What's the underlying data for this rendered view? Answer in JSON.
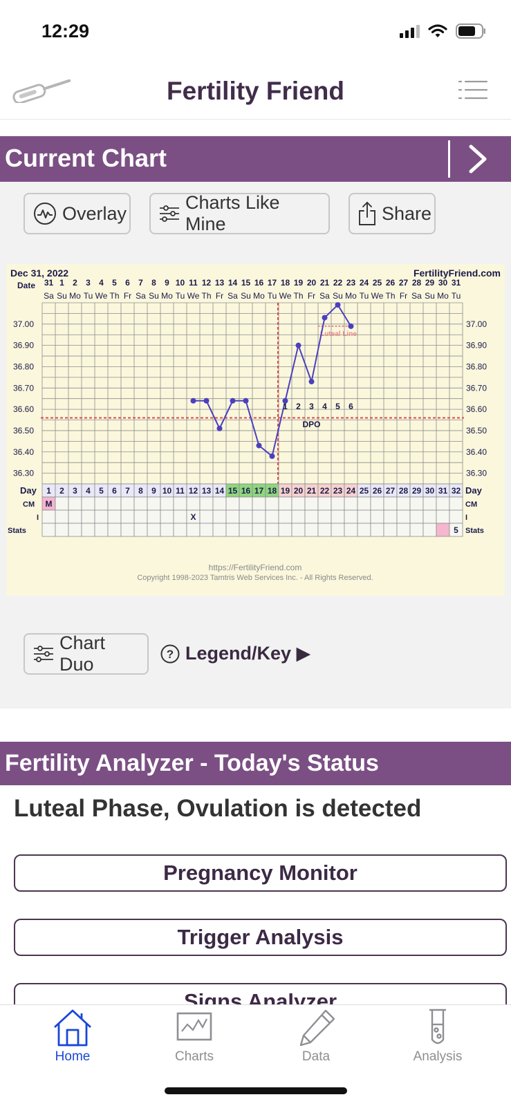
{
  "status_bar": {
    "time": "12:29"
  },
  "header": {
    "title": "Fertility Friend"
  },
  "current_chart": {
    "title": "Current Chart",
    "buttons": {
      "overlay": "Overlay",
      "charts_like_mine": "Charts Like Mine",
      "share": "Share"
    }
  },
  "chart_data": {
    "type": "line",
    "title": "Dec 31, 2022",
    "brand": "FertilityFriend.com",
    "date_row_label": "Date",
    "dates": [
      "31",
      "1",
      "2",
      "3",
      "4",
      "5",
      "6",
      "7",
      "8",
      "9",
      "10",
      "11",
      "12",
      "13",
      "14",
      "15",
      "16",
      "17",
      "18",
      "19",
      "20",
      "21",
      "22",
      "23",
      "24",
      "25",
      "26",
      "27",
      "28",
      "29",
      "30",
      "31"
    ],
    "weekdays": [
      "Sa",
      "Su",
      "Mo",
      "Tu",
      "We",
      "Th",
      "Fr",
      "Sa",
      "Su",
      "Mo",
      "Tu",
      "We",
      "Th",
      "Fr",
      "Sa",
      "Su",
      "Mo",
      "Tu",
      "We",
      "Th",
      "Fr",
      "Sa",
      "Su",
      "Mo",
      "Tu",
      "We",
      "Th",
      "Fr",
      "Sa",
      "Su",
      "Mo",
      "Tu"
    ],
    "y_ticks": [
      "37.00",
      "36.90",
      "36.80",
      "36.70",
      "36.60",
      "36.50",
      "36.40",
      "36.30"
    ],
    "ylim": [
      36.25,
      37.1
    ],
    "temperatures": [
      {
        "day": 12,
        "value": 36.64
      },
      {
        "day": 13,
        "value": 36.64
      },
      {
        "day": 14,
        "value": 36.51
      },
      {
        "day": 15,
        "value": 36.64
      },
      {
        "day": 16,
        "value": 36.64
      },
      {
        "day": 17,
        "value": 36.43
      },
      {
        "day": 18,
        "value": 36.38
      },
      {
        "day": 19,
        "value": 36.64
      },
      {
        "day": 20,
        "value": 36.9
      },
      {
        "day": 21,
        "value": 36.73
      },
      {
        "day": 22,
        "value": 37.03
      },
      {
        "day": 23,
        "value": 37.09
      },
      {
        "day": 24,
        "value": 36.99
      }
    ],
    "coverline": 36.56,
    "ovulation_day": 18,
    "luteal_line": {
      "value": 36.99,
      "from_day": 22,
      "to_day": 24,
      "label": "Luteal Line"
    },
    "dpo": {
      "labels": [
        "1",
        "2",
        "3",
        "4",
        "5",
        "6"
      ],
      "start_day": 19,
      "text": "DPO"
    },
    "day_row_label": "Day",
    "days": [
      "1",
      "2",
      "3",
      "4",
      "5",
      "6",
      "7",
      "8",
      "9",
      "10",
      "11",
      "12",
      "13",
      "14",
      "15",
      "16",
      "17",
      "18",
      "19",
      "20",
      "21",
      "22",
      "23",
      "24",
      "25",
      "26",
      "27",
      "28",
      "29",
      "30",
      "31",
      "32"
    ],
    "fertile_days": [
      15,
      16,
      17,
      18
    ],
    "luteal_days": [
      19,
      20,
      21,
      22,
      23,
      24
    ],
    "rows": [
      {
        "label": "CM",
        "marks": [
          {
            "day": 1,
            "text": "M"
          }
        ]
      },
      {
        "label": "I",
        "marks": [
          {
            "day": 12,
            "text": "X"
          }
        ]
      },
      {
        "label": "Stats",
        "marks": [
          {
            "day": 32,
            "text": "5"
          }
        ]
      }
    ],
    "stats_highlight_day": 31,
    "footer_url": "https://FertilityFriend.com",
    "copyright": "Copyright 1998-2023 Tamtris Web Services Inc. - All Rights Reserved.",
    "colors": {
      "line": "#4b3fbf",
      "coverline": "#d94a4a",
      "fertile": "#8fd67f",
      "luteal": "#f6d2cf",
      "menses": "#f5b6cf",
      "background": "#faf7dc"
    }
  },
  "chart_actions": {
    "chart_duo": "Chart Duo",
    "legend": "Legend/Key ▶"
  },
  "analyzer": {
    "title": "Fertility Analyzer - Today's Status",
    "status": "Luteal Phase, Ovulation is detected",
    "buttons": [
      "Pregnancy Monitor",
      "Trigger Analysis",
      "Signs Analyzer"
    ]
  },
  "tabs": [
    {
      "label": "Home",
      "icon": "home-icon",
      "active": true
    },
    {
      "label": "Charts",
      "icon": "chart-icon",
      "active": false
    },
    {
      "label": "Data",
      "icon": "pencil-icon",
      "active": false
    },
    {
      "label": "Analysis",
      "icon": "test-tube-icon",
      "active": false
    }
  ]
}
